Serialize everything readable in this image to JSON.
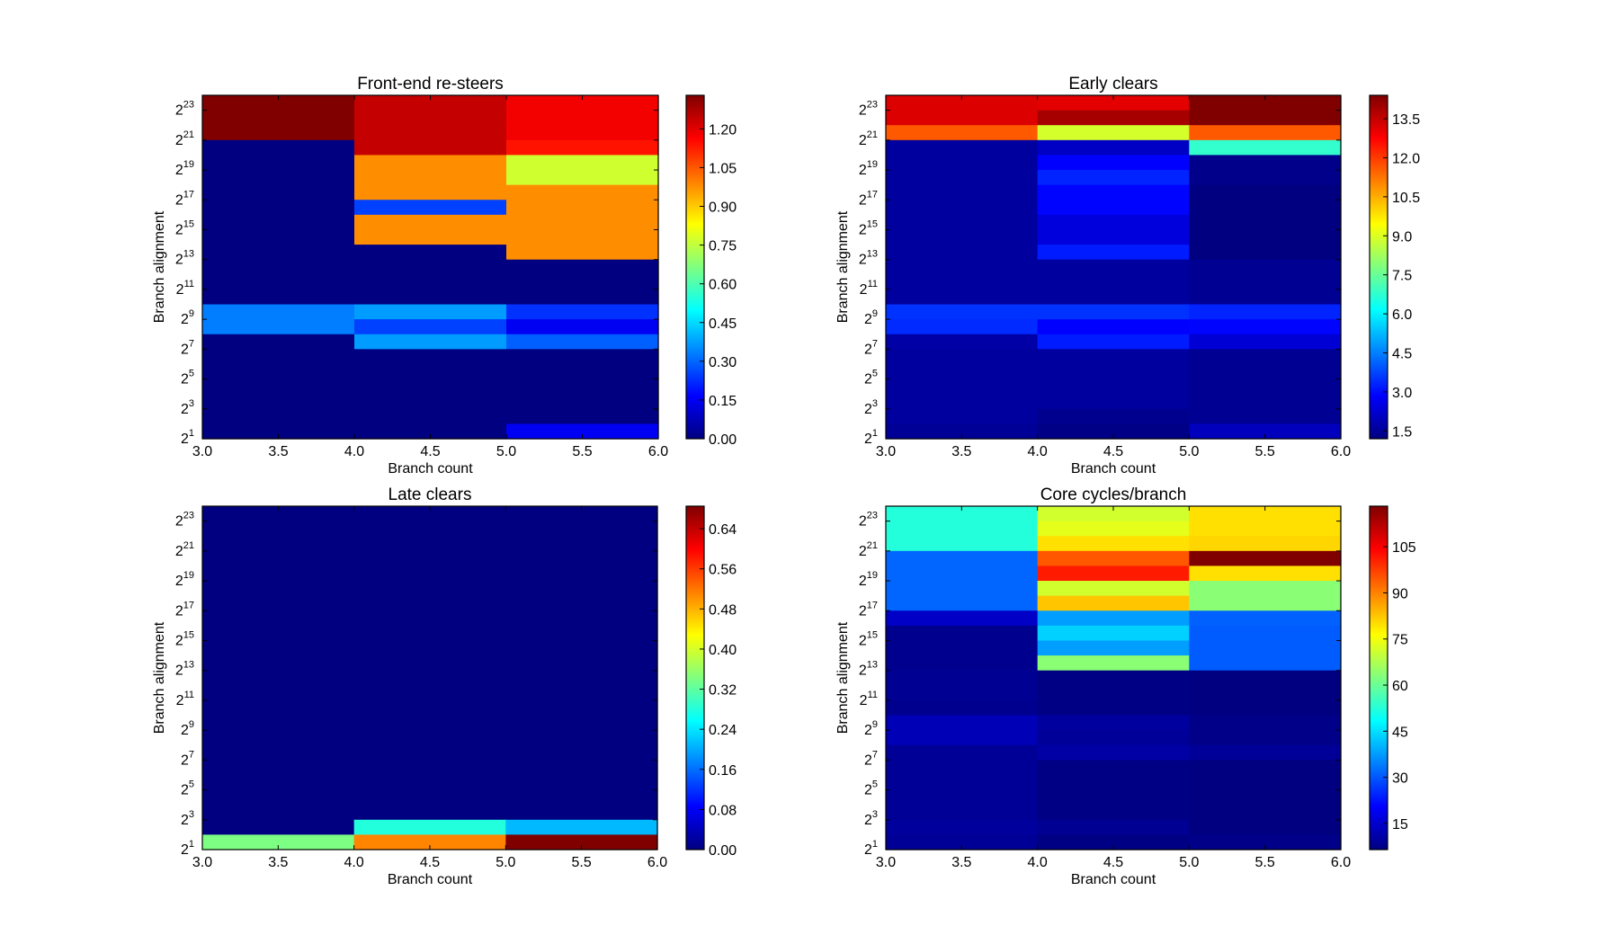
{
  "figure": {
    "background": "#ffffff",
    "colormap": "jet"
  },
  "chart_data": [
    {
      "type": "heatmap",
      "title": "Front-end re-steers",
      "xlabel": "Branch count",
      "ylabel": "Branch alignment",
      "xlim": [
        3,
        6
      ],
      "ylim_log2": [
        1,
        24
      ],
      "y_scale": "log2",
      "x_edges": [
        3,
        4,
        5,
        6
      ],
      "x_tick_values": [
        3.0,
        3.5,
        4.0,
        4.5,
        5.0,
        5.5,
        6.0
      ],
      "x_tick_labels": [
        "3.0",
        "3.5",
        "4.0",
        "4.5",
        "5.0",
        "5.5",
        "6.0"
      ],
      "y_tick_log2": [
        1,
        3,
        5,
        7,
        9,
        11,
        13,
        15,
        17,
        19,
        21,
        23
      ],
      "y_tick_labels": [
        {
          "base": "2",
          "exp": "1"
        },
        {
          "base": "2",
          "exp": "3"
        },
        {
          "base": "2",
          "exp": "5"
        },
        {
          "base": "2",
          "exp": "7"
        },
        {
          "base": "2",
          "exp": "9"
        },
        {
          "base": "2",
          "exp": "11"
        },
        {
          "base": "2",
          "exp": "13"
        },
        {
          "base": "2",
          "exp": "15"
        },
        {
          "base": "2",
          "exp": "17"
        },
        {
          "base": "2",
          "exp": "19"
        },
        {
          "base": "2",
          "exp": "21"
        },
        {
          "base": "2",
          "exp": "23"
        }
      ],
      "rows_lower_log2_top_to_bottom": [
        23,
        22,
        21,
        20,
        19,
        18,
        17,
        16,
        15,
        14,
        13,
        12,
        11,
        10,
        9,
        8,
        7,
        6,
        5,
        4,
        3,
        2,
        1
      ],
      "values": [
        [
          1.33,
          1.24,
          1.18
        ],
        [
          1.33,
          1.24,
          1.18
        ],
        [
          1.33,
          1.24,
          1.18
        ],
        [
          0.0,
          1.24,
          1.14
        ],
        [
          0.0,
          0.98,
          0.77
        ],
        [
          0.0,
          0.98,
          0.77
        ],
        [
          0.0,
          0.98,
          0.98
        ],
        [
          0.0,
          0.25,
          0.98
        ],
        [
          0.0,
          0.98,
          0.98
        ],
        [
          0.0,
          0.98,
          0.98
        ],
        [
          0.0,
          0.0,
          0.98
        ],
        [
          0.0,
          0.0,
          0.0
        ],
        [
          0.0,
          0.0,
          0.0
        ],
        [
          0.0,
          0.0,
          0.0
        ],
        [
          0.33,
          0.37,
          0.23
        ],
        [
          0.33,
          0.25,
          0.15
        ],
        [
          0.0,
          0.37,
          0.29
        ],
        [
          0.0,
          0.0,
          0.0
        ],
        [
          0.0,
          0.0,
          0.0
        ],
        [
          0.0,
          0.0,
          0.0
        ],
        [
          0.0,
          0.0,
          0.0
        ],
        [
          0.0,
          0.0,
          0.0
        ],
        [
          0.0,
          0.0,
          0.15
        ]
      ],
      "colorbar": {
        "range": [
          0,
          1.33
        ],
        "tick_values": [
          0,
          0.15,
          0.3,
          0.45,
          0.6,
          0.75,
          0.9,
          1.05,
          1.2
        ],
        "tick_labels": [
          "0.00",
          "0.15",
          "0.30",
          "0.45",
          "0.60",
          "0.75",
          "0.90",
          "1.05",
          "1.20"
        ]
      }
    },
    {
      "type": "heatmap",
      "title": "Early clears",
      "xlabel": "Branch count",
      "ylabel": "Branch alignment",
      "xlim": [
        3,
        6
      ],
      "ylim_log2": [
        1,
        24
      ],
      "y_scale": "log2",
      "x_edges": [
        3,
        4,
        5,
        6
      ],
      "x_tick_values": [
        3.0,
        3.5,
        4.0,
        4.5,
        5.0,
        5.5,
        6.0
      ],
      "x_tick_labels": [
        "3.0",
        "3.5",
        "4.0",
        "4.5",
        "5.0",
        "5.5",
        "6.0"
      ],
      "y_tick_log2": [
        1,
        3,
        5,
        7,
        9,
        11,
        13,
        15,
        17,
        19,
        21,
        23
      ],
      "y_tick_labels": [
        {
          "base": "2",
          "exp": "1"
        },
        {
          "base": "2",
          "exp": "3"
        },
        {
          "base": "2",
          "exp": "5"
        },
        {
          "base": "2",
          "exp": "7"
        },
        {
          "base": "2",
          "exp": "9"
        },
        {
          "base": "2",
          "exp": "11"
        },
        {
          "base": "2",
          "exp": "13"
        },
        {
          "base": "2",
          "exp": "15"
        },
        {
          "base": "2",
          "exp": "17"
        },
        {
          "base": "2",
          "exp": "19"
        },
        {
          "base": "2",
          "exp": "21"
        },
        {
          "base": "2",
          "exp": "23"
        }
      ],
      "rows_lower_log2_top_to_bottom": [
        23,
        22,
        21,
        20,
        19,
        18,
        17,
        16,
        15,
        14,
        13,
        12,
        11,
        10,
        9,
        8,
        7,
        6,
        5,
        4,
        3,
        2,
        1
      ],
      "values": [
        [
          13.2,
          13.1,
          14.4
        ],
        [
          13.2,
          13.9,
          14.4
        ],
        [
          11.6,
          8.9,
          11.6
        ],
        [
          1.6,
          2.1,
          6.8
        ],
        [
          1.6,
          2.85,
          1.35
        ],
        [
          1.6,
          3.3,
          1.35
        ],
        [
          1.6,
          2.9,
          1.2
        ],
        [
          1.6,
          2.9,
          1.2
        ],
        [
          1.6,
          2.4,
          1.2
        ],
        [
          1.6,
          2.4,
          1.2
        ],
        [
          1.6,
          3.2,
          1.2
        ],
        [
          1.6,
          1.6,
          1.45
        ],
        [
          1.6,
          1.6,
          1.45
        ],
        [
          1.6,
          1.6,
          1.45
        ],
        [
          3.5,
          3.5,
          3.3
        ],
        [
          3.4,
          2.85,
          2.9
        ],
        [
          1.7,
          3.2,
          2.3
        ],
        [
          1.6,
          1.6,
          1.45
        ],
        [
          1.6,
          1.6,
          1.45
        ],
        [
          1.6,
          1.6,
          1.45
        ],
        [
          1.6,
          1.6,
          1.45
        ],
        [
          1.6,
          1.4,
          1.45
        ],
        [
          1.5,
          1.3,
          2.0
        ]
      ],
      "colorbar": {
        "range": [
          1.2,
          14.4
        ],
        "tick_values": [
          1.5,
          3.0,
          4.5,
          6.0,
          7.5,
          9.0,
          10.5,
          12.0,
          13.5
        ],
        "tick_labels": [
          "1.5",
          "3.0",
          "4.5",
          "6.0",
          "7.5",
          "9.0",
          "10.5",
          "12.0",
          "13.5"
        ]
      }
    },
    {
      "type": "heatmap",
      "title": "Late clears",
      "xlabel": "Branch count",
      "ylabel": "Branch alignment",
      "xlim": [
        3,
        6
      ],
      "ylim_log2": [
        1,
        24
      ],
      "y_scale": "log2",
      "x_edges": [
        3,
        4,
        5,
        6
      ],
      "x_tick_values": [
        3.0,
        3.5,
        4.0,
        4.5,
        5.0,
        5.5,
        6.0
      ],
      "x_tick_labels": [
        "3.0",
        "3.5",
        "4.0",
        "4.5",
        "5.0",
        "5.5",
        "6.0"
      ],
      "y_tick_log2": [
        1,
        3,
        5,
        7,
        9,
        11,
        13,
        15,
        17,
        19,
        21,
        23
      ],
      "y_tick_labels": [
        {
          "base": "2",
          "exp": "1"
        },
        {
          "base": "2",
          "exp": "3"
        },
        {
          "base": "2",
          "exp": "5"
        },
        {
          "base": "2",
          "exp": "7"
        },
        {
          "base": "2",
          "exp": "9"
        },
        {
          "base": "2",
          "exp": "11"
        },
        {
          "base": "2",
          "exp": "13"
        },
        {
          "base": "2",
          "exp": "15"
        },
        {
          "base": "2",
          "exp": "17"
        },
        {
          "base": "2",
          "exp": "19"
        },
        {
          "base": "2",
          "exp": "21"
        },
        {
          "base": "2",
          "exp": "23"
        }
      ],
      "rows_lower_log2_top_to_bottom": [
        23,
        22,
        21,
        20,
        19,
        18,
        17,
        16,
        15,
        14,
        13,
        12,
        11,
        10,
        9,
        8,
        7,
        6,
        5,
        4,
        3,
        2,
        1
      ],
      "values": [
        [
          0,
          0,
          0
        ],
        [
          0,
          0,
          0
        ],
        [
          0,
          0,
          0
        ],
        [
          0,
          0,
          0
        ],
        [
          0,
          0,
          0
        ],
        [
          0,
          0,
          0
        ],
        [
          0,
          0,
          0
        ],
        [
          0,
          0,
          0
        ],
        [
          0,
          0,
          0
        ],
        [
          0,
          0,
          0
        ],
        [
          0,
          0,
          0
        ],
        [
          0,
          0,
          0
        ],
        [
          0,
          0,
          0
        ],
        [
          0,
          0,
          0
        ],
        [
          0,
          0,
          0
        ],
        [
          0,
          0,
          0
        ],
        [
          0,
          0,
          0
        ],
        [
          0,
          0,
          0
        ],
        [
          0,
          0,
          0
        ],
        [
          0,
          0,
          0
        ],
        [
          0,
          0,
          0
        ],
        [
          0,
          0.28,
          0.21
        ],
        [
          0.34,
          0.51,
          0.685
        ]
      ],
      "colorbar": {
        "range": [
          0,
          0.685
        ],
        "tick_values": [
          0,
          0.08,
          0.16,
          0.24,
          0.32,
          0.4,
          0.48,
          0.56,
          0.64
        ],
        "tick_labels": [
          "0.00",
          "0.08",
          "0.16",
          "0.24",
          "0.32",
          "0.40",
          "0.48",
          "0.56",
          "0.64"
        ]
      }
    },
    {
      "type": "heatmap",
      "title": "Core cycles/branch",
      "xlabel": "Branch count",
      "ylabel": "Branch alignment",
      "xlim": [
        3,
        6
      ],
      "ylim_log2": [
        1,
        24
      ],
      "y_scale": "log2",
      "x_edges": [
        3,
        4,
        5,
        6
      ],
      "x_tick_values": [
        3.0,
        3.5,
        4.0,
        4.5,
        5.0,
        5.5,
        6.0
      ],
      "x_tick_labels": [
        "3.0",
        "3.5",
        "4.0",
        "4.5",
        "5.0",
        "5.5",
        "6.0"
      ],
      "y_tick_log2": [
        1,
        3,
        5,
        7,
        9,
        11,
        13,
        15,
        17,
        19,
        21,
        23
      ],
      "y_tick_labels": [
        {
          "base": "2",
          "exp": "1"
        },
        {
          "base": "2",
          "exp": "3"
        },
        {
          "base": "2",
          "exp": "5"
        },
        {
          "base": "2",
          "exp": "7"
        },
        {
          "base": "2",
          "exp": "9"
        },
        {
          "base": "2",
          "exp": "11"
        },
        {
          "base": "2",
          "exp": "13"
        },
        {
          "base": "2",
          "exp": "15"
        },
        {
          "base": "2",
          "exp": "17"
        },
        {
          "base": "2",
          "exp": "19"
        },
        {
          "base": "2",
          "exp": "21"
        },
        {
          "base": "2",
          "exp": "23"
        }
      ],
      "rows_lower_log2_top_to_bottom": [
        23,
        22,
        21,
        20,
        19,
        18,
        17,
        16,
        15,
        14,
        13,
        12,
        11,
        10,
        9,
        8,
        7,
        6,
        5,
        4,
        3,
        2,
        1
      ],
      "values": [
        [
          52.3,
          71.3,
          79.7
        ],
        [
          52.3,
          73.5,
          79.7
        ],
        [
          52.3,
          79.7,
          80.8
        ],
        [
          31.6,
          94.7,
          118.2
        ],
        [
          31.6,
          101.4,
          79.7
        ],
        [
          31.6,
          71.3,
          63.5
        ],
        [
          31.6,
          82.5,
          63.5
        ],
        [
          14.3,
          37.8,
          31.1
        ],
        [
          8.2,
          43.4,
          30.5
        ],
        [
          8.2,
          37.8,
          30.5
        ],
        [
          8.2,
          63.5,
          30.5
        ],
        [
          8.5,
          7.1,
          6.5
        ],
        [
          8.5,
          7.1,
          6.5
        ],
        [
          8.2,
          7.1,
          6.5
        ],
        [
          12.6,
          10.0,
          7.5
        ],
        [
          12.6,
          9.2,
          7.5
        ],
        [
          9.0,
          10.6,
          9.2
        ],
        [
          9.0,
          7.1,
          6.5
        ],
        [
          9.0,
          7.1,
          6.5
        ],
        [
          9.0,
          7.1,
          6.5
        ],
        [
          9.0,
          7.1,
          6.5
        ],
        [
          9.6,
          8.5,
          6.5
        ],
        [
          9.0,
          7.1,
          7.5
        ]
      ],
      "colorbar": {
        "range": [
          6.5,
          118.2
        ],
        "tick_values": [
          15,
          30,
          45,
          60,
          75,
          90,
          105
        ],
        "tick_labels": [
          "15",
          "30",
          "45",
          "60",
          "75",
          "90",
          "105"
        ]
      }
    }
  ]
}
